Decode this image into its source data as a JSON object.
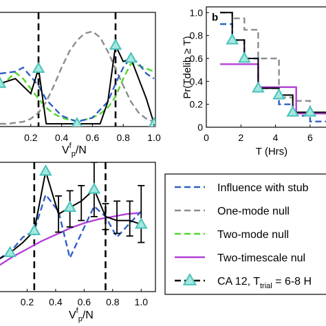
{
  "chart_data": [
    {
      "type": "line",
      "panel": "top-left",
      "xlabel": "Vf_p/N",
      "xlim": [
        0,
        1.0
      ],
      "ylim": [
        0,
        1.0
      ],
      "tick_labels_x": [
        "0.2",
        "0.4",
        "0.6",
        "0.8",
        "1.0"
      ],
      "x_tick_values": [
        0.2,
        0.4,
        0.6,
        0.8,
        1.0
      ],
      "vlines": [
        0.25,
        0.75
      ],
      "series": [
        {
          "key": "one_mode",
          "x": [
            0.0,
            0.05,
            0.1,
            0.15,
            0.2,
            0.25,
            0.3,
            0.35,
            0.4,
            0.45,
            0.5,
            0.55,
            0.6,
            0.65,
            0.7,
            0.75,
            0.8,
            0.85,
            0.9,
            0.95,
            1.0
          ],
          "y": [
            0.0,
            0.0,
            0.01,
            0.02,
            0.05,
            0.11,
            0.22,
            0.38,
            0.56,
            0.72,
            0.83,
            0.9,
            0.92,
            0.86,
            0.72,
            0.55,
            0.38,
            0.22,
            0.11,
            0.05,
            0.02
          ]
        },
        {
          "key": "two_mode",
          "x": [
            0.0,
            0.05,
            0.1,
            0.15,
            0.2,
            0.25,
            0.3,
            0.35,
            0.4,
            0.45,
            0.5,
            0.55,
            0.6,
            0.65,
            0.7,
            0.75,
            0.8,
            0.85,
            0.9,
            0.95,
            1.0
          ],
          "y": [
            0.38,
            0.44,
            0.51,
            0.45,
            0.35,
            0.25,
            0.16,
            0.1,
            0.06,
            0.04,
            0.03,
            0.04,
            0.06,
            0.1,
            0.16,
            0.27,
            0.45,
            0.6,
            0.58,
            0.55,
            0.52
          ]
        },
        {
          "key": "influence",
          "x": [
            0.0,
            0.1,
            0.15,
            0.2,
            0.25,
            0.3,
            0.4,
            0.5,
            0.6,
            0.7,
            0.75,
            0.8,
            0.85,
            0.9,
            0.95,
            1.0
          ],
          "y": [
            0.5,
            0.52,
            0.56,
            0.47,
            0.38,
            0.24,
            0.08,
            0.02,
            0.06,
            0.22,
            0.4,
            0.56,
            0.66,
            0.6,
            0.5,
            0.45
          ]
        },
        {
          "key": "ca12",
          "x": [
            0.0,
            0.1,
            0.2,
            0.25,
            0.3,
            0.35,
            0.4,
            0.45,
            0.5,
            0.55,
            0.6,
            0.65,
            0.7,
            0.75,
            0.8,
            0.85,
            0.9,
            0.95,
            1.0
          ],
          "y": [
            0.4,
            0.45,
            0.3,
            0.55,
            0.0,
            0.0,
            0.0,
            0.0,
            0.0,
            0.0,
            0.0,
            0.0,
            0.22,
            0.78,
            0.62,
            0.65,
            0.45,
            0.25,
            0.0
          ]
        }
      ],
      "markers": {
        "key": "ca12",
        "x": [
          0.0,
          0.25,
          0.5,
          0.75,
          0.85,
          1.0
        ],
        "y": [
          0.4,
          0.55,
          0.0,
          0.78,
          0.65,
          0.0
        ]
      }
    },
    {
      "type": "line",
      "panel": "top-right",
      "panel_label": "b",
      "ylabel": "Pr(Tdelib ≥ T)",
      "xlabel": "T (Hrs)",
      "xlim": [
        0,
        7
      ],
      "ylim": [
        0,
        1.05
      ],
      "tick_labels_x": [
        "0",
        "2",
        "4",
        "6"
      ],
      "x_tick_values": [
        0,
        2,
        4,
        6
      ],
      "tick_labels_y": [
        "0",
        "0.2",
        "0.4",
        "0.6",
        "0.8",
        "1.0"
      ],
      "y_tick_values": [
        0,
        0.2,
        0.4,
        0.6,
        0.8,
        1.0
      ],
      "series": [
        {
          "key": "one_mode",
          "step_x": [
            0.8,
            1.5,
            2.2,
            3.0,
            4.2,
            5.0,
            6.0,
            7.0
          ],
          "step_y": [
            1.0,
            0.95,
            0.85,
            0.6,
            0.26,
            0.23,
            0.12
          ]
        },
        {
          "key": "influence",
          "step_x": [
            0.8,
            1.5,
            2.2,
            3.0,
            4.2,
            5.0,
            6.0,
            7.0
          ],
          "step_y": [
            0.9,
            0.76,
            0.6,
            0.34,
            0.2,
            0.1,
            0.05
          ]
        },
        {
          "key": "two_timescale",
          "step_x": [
            0.8,
            3.0,
            5.2,
            7.0
          ],
          "step_y": [
            0.55,
            0.35,
            0.12
          ]
        },
        {
          "key": "ca12",
          "step_x": [
            0.8,
            1.5,
            2.2,
            3.0,
            4.2,
            5.0,
            6.0,
            7.0
          ],
          "step_y": [
            1.0,
            0.76,
            0.6,
            0.34,
            0.28,
            0.13,
            0.13
          ]
        }
      ],
      "markers": {
        "key": "ca12",
        "x": [
          1.5,
          2.2,
          3.0,
          4.2,
          5.0,
          6.0
        ],
        "y": [
          0.76,
          0.6,
          0.34,
          0.28,
          0.13,
          0.13
        ]
      }
    },
    {
      "type": "line",
      "panel": "bottom-left",
      "xlabel": "Vf_p/N",
      "xlim": [
        0,
        1.1
      ],
      "ylim": [
        0,
        1.0
      ],
      "tick_labels_x": [
        "0.2",
        "0.4",
        "0.6",
        "0.8",
        "1.0"
      ],
      "x_tick_values": [
        0.2,
        0.4,
        0.6,
        0.8,
        1.0
      ],
      "vlines": [
        0.25,
        0.75
      ],
      "series": [
        {
          "key": "two_timescale",
          "x": [
            0.0,
            0.1,
            0.2,
            0.3,
            0.4,
            0.5,
            0.6,
            0.7,
            0.8,
            0.9,
            1.0
          ],
          "y": [
            0.2,
            0.27,
            0.33,
            0.39,
            0.44,
            0.49,
            0.53,
            0.56,
            0.58,
            0.6,
            0.61
          ]
        },
        {
          "key": "influence",
          "x": [
            0.0,
            0.1,
            0.17,
            0.25,
            0.33,
            0.42,
            0.5,
            0.58,
            0.67,
            0.75,
            0.83,
            0.92,
            1.0
          ],
          "y": [
            0.25,
            0.33,
            0.42,
            0.47,
            0.75,
            0.62,
            0.26,
            0.45,
            0.66,
            0.58,
            0.42,
            0.53,
            0.62
          ]
        },
        {
          "key": "ca12",
          "x": [
            0.0,
            0.08,
            0.17,
            0.25,
            0.33,
            0.42,
            0.5,
            0.58,
            0.67,
            0.75,
            0.83,
            0.92,
            1.0
          ],
          "y": [
            0.25,
            0.3,
            0.38,
            0.47,
            0.93,
            0.6,
            0.65,
            0.7,
            0.79,
            0.58,
            0.55,
            0.55,
            0.52
          ]
        }
      ],
      "markers": {
        "key": "ca12",
        "x": [
          0.08,
          0.25,
          0.33,
          0.5,
          0.67,
          1.0
        ],
        "y": [
          0.3,
          0.47,
          0.93,
          0.65,
          0.79,
          0.52
        ]
      },
      "errorbars": [
        {
          "x": 0.42,
          "lo": 0.46,
          "hi": 0.74
        },
        {
          "x": 0.5,
          "lo": 0.5,
          "hi": 0.78
        },
        {
          "x": 0.58,
          "lo": 0.55,
          "hi": 0.82
        },
        {
          "x": 0.67,
          "lo": 0.58,
          "hi": 1.0
        },
        {
          "x": 0.75,
          "lo": 0.48,
          "hi": 0.68
        },
        {
          "x": 0.83,
          "lo": 0.45,
          "hi": 0.7
        },
        {
          "x": 0.92,
          "lo": 0.43,
          "hi": 0.7
        },
        {
          "x": 1.0,
          "lo": 0.38,
          "hi": 0.82
        }
      ]
    }
  ],
  "styles": {
    "influence": {
      "color": "#2e5fc8",
      "dash": "9 5"
    },
    "one_mode": {
      "color": "#8c8c8c",
      "dash": "9 5"
    },
    "two_mode": {
      "color": "#4ed82a",
      "dash": "9 5"
    },
    "two_timescale": {
      "color": "#b23fd8",
      "dash": ""
    },
    "ca12": {
      "color": "#000000",
      "dash": ""
    },
    "marker_fill": "#a3e8e0",
    "marker_stroke": "#4ac2b8",
    "vline_color": "#000000"
  },
  "legend": {
    "position": "bottom-right",
    "entries": [
      {
        "key": "influence",
        "label": "Influence with stub"
      },
      {
        "key": "one_mode",
        "label": "One-mode null"
      },
      {
        "key": "two_mode",
        "label": "Two-mode null"
      },
      {
        "key": "two_timescale",
        "label": "Two-timescale nul"
      },
      {
        "key": "ca12",
        "label": "CA 12, T",
        "sub": "trial",
        "suffix": " = 6-8 H"
      }
    ]
  },
  "axis_text": {
    "v_main": "V",
    "v_sup": "f",
    "v_sub": "p",
    "v_tail": "/N"
  }
}
